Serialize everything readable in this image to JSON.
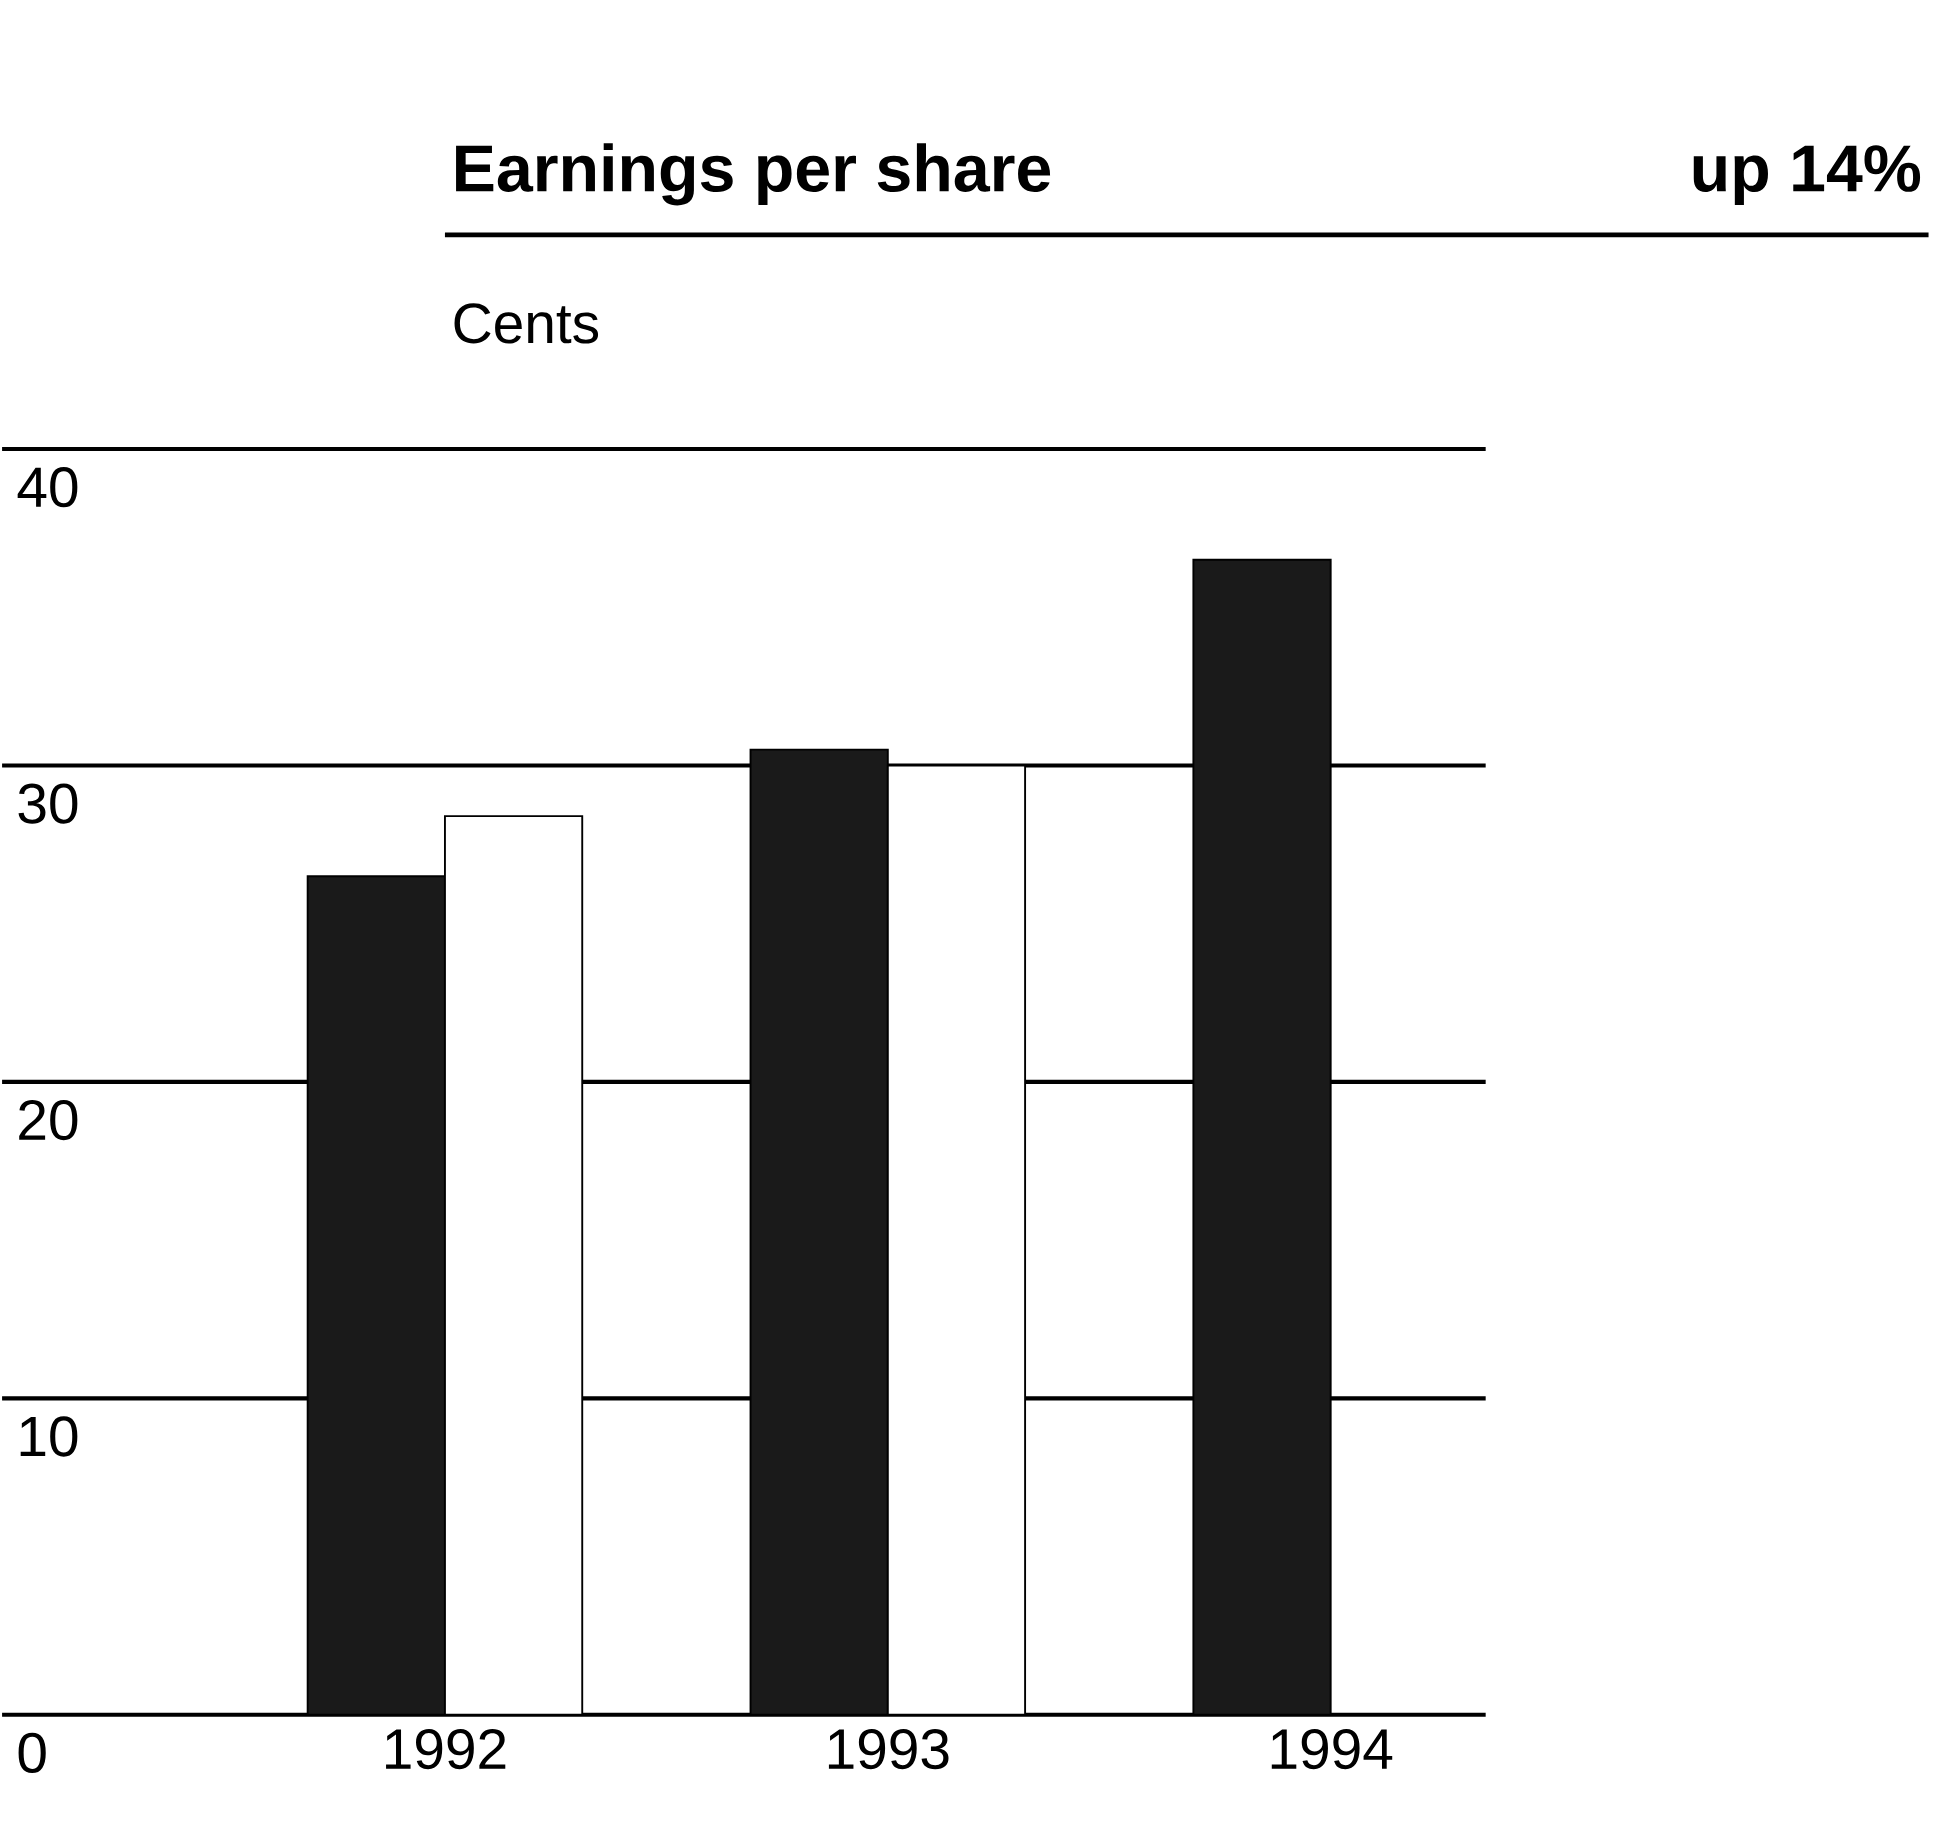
{
  "chart_data": {
    "type": "bar",
    "title": "Earnings per share",
    "subtitle": "up 14%",
    "ylabel": "Cents",
    "categories": [
      "1992",
      "1993",
      "1994"
    ],
    "series": [
      {
        "color": "#1a1a1a",
        "values": [
          26.5,
          30.5,
          36.5
        ]
      },
      {
        "color": "#ffffff",
        "values": [
          28.4,
          30.0,
          null
        ]
      }
    ],
    "ylim": [
      0,
      40
    ],
    "yticks": [
      0,
      10,
      20,
      30,
      40
    ],
    "grid": "y"
  }
}
